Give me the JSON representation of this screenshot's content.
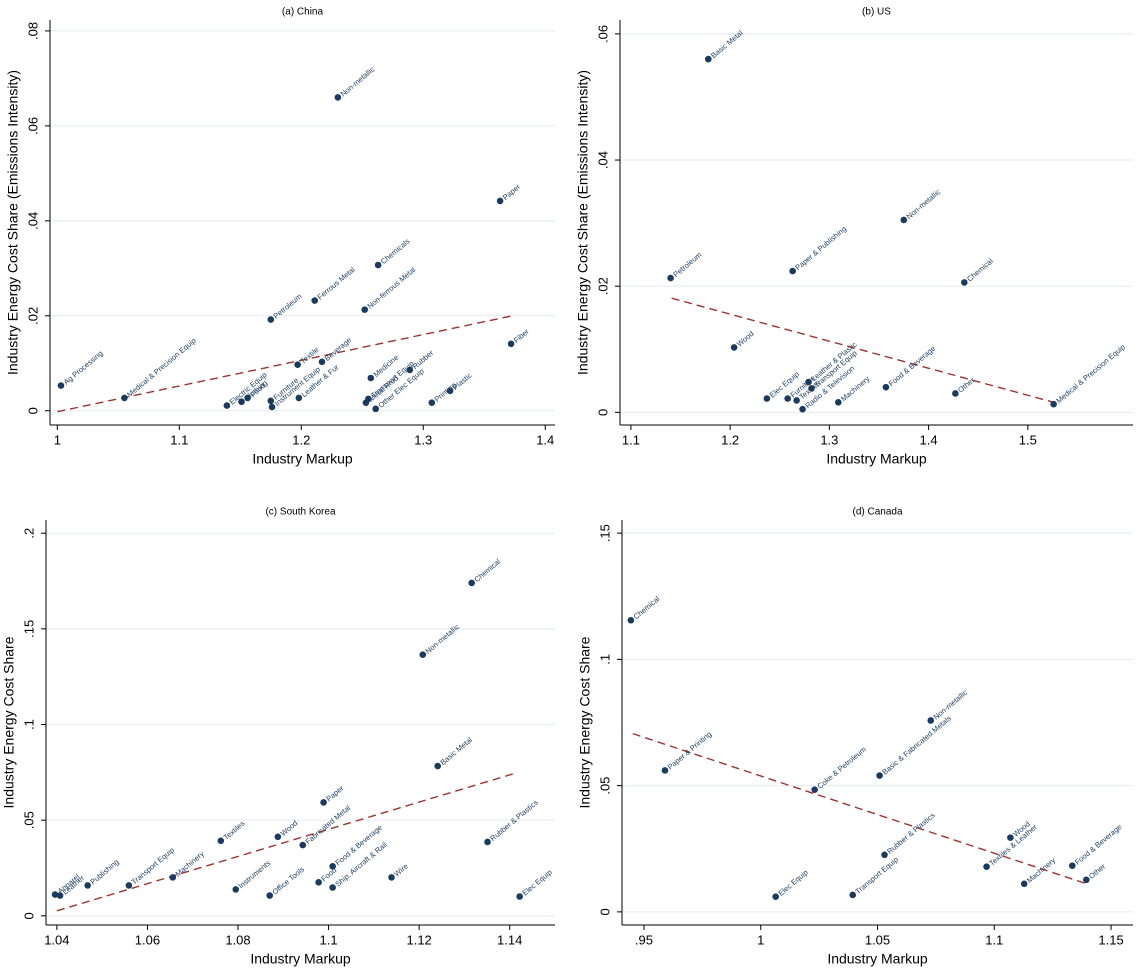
{
  "chart_data": [
    {
      "type": "scatter",
      "title": "(a) China",
      "x_label": "Industry Markup",
      "y_label": "Industry Energy Cost Share (Emissions Intensity)",
      "x": [
        1.003,
        1.055,
        1.23,
        1.363,
        1.263,
        1.211,
        1.175,
        1.252,
        1.372,
        1.197,
        1.217,
        1.257,
        1.289,
        1.139,
        1.151,
        1.156,
        1.175,
        1.176,
        1.198,
        1.253,
        1.255,
        1.261,
        1.307,
        1.322
      ],
      "values": [
        0.0053,
        0.0027,
        0.066,
        0.0442,
        0.0307,
        0.0232,
        0.0192,
        0.0213,
        0.0141,
        0.0097,
        0.0103,
        0.0069,
        0.0086,
        0.0011,
        0.0019,
        0.0027,
        0.0021,
        0.0008,
        0.0027,
        0.0017,
        0.0025,
        0.0004,
        0.0017,
        0.0042
      ],
      "point_labels": [
        "Ag Processing",
        "Medical & Precision Equip",
        "Non-metallic",
        "Paper",
        "Chemicals",
        "Ferrous Metal",
        "Petroleum",
        "Non-ferrous Metal",
        "Fiber",
        "Textile",
        "Beverage",
        "Medicine",
        "Rubber",
        "Electric Equip",
        "Clothing",
        "Food",
        "Furniture",
        "Instrument Equip",
        "Leather & Fur",
        "Metal Prod",
        "Transport Equip",
        "Other Elec Equip",
        "Printing",
        "Plastic"
      ],
      "color": "#1b3a5e",
      "fit_x": [
        1.0,
        1.373
      ],
      "fit_values": [
        -0.0002,
        0.02
      ],
      "fit_color": "#9e3431",
      "xlim": [
        0.994,
        1.408
      ],
      "ylim": [
        -0.003,
        0.0823
      ],
      "xticks": [
        1,
        1.1,
        1.2,
        1.3,
        1.4
      ],
      "yticks": [
        0,
        {
          "value": 0.02,
          "label": ".02"
        },
        {
          "value": 0.04,
          "label": ".04"
        },
        {
          "value": 0.06,
          "label": ".06"
        },
        {
          "value": 0.08,
          "label": ".08"
        }
      ],
      "grid": true
    },
    {
      "type": "scatter",
      "title": "(b) US",
      "x_label": "Industry Markup",
      "y_label": "Industry Energy Cost Share (Emissions Intensity)",
      "x": [
        1.178,
        1.375,
        1.263,
        1.14,
        1.436,
        1.204,
        1.237,
        1.258,
        1.279,
        1.282,
        1.267,
        1.273,
        1.309,
        1.357,
        1.427,
        1.526
      ],
      "values": [
        0.056,
        0.0305,
        0.0224,
        0.0213,
        0.0206,
        0.0103,
        0.0022,
        0.0022,
        0.0048,
        0.0038,
        0.0019,
        0.0005,
        0.0016,
        0.004,
        0.003,
        0.0013
      ],
      "point_labels": [
        "Basic Metal",
        "Non-metallic",
        "Paper & Publishing",
        "Petroleum",
        "Chemical",
        "Wood",
        "Elec Equip",
        "Furniture",
        "Leather & Plastic",
        "Transport Equip",
        "Textiles",
        "Radio & Television",
        "Machinery",
        "Food & Beverage",
        "Other",
        "Medical & Precision Equip"
      ],
      "color": "#1b3a5e",
      "fit_x": [
        1.141,
        1.526
      ],
      "fit_values": [
        0.0181,
        0.0016
      ],
      "fit_color": "#9e3431",
      "xlim": [
        1.089,
        1.606
      ],
      "ylim": [
        -0.002,
        0.0622
      ],
      "xticks": [
        1.1,
        1.2,
        1.3,
        1.4,
        1.5
      ],
      "yticks": [
        0,
        {
          "value": 0.02,
          "label": ".02"
        },
        {
          "value": 0.04,
          "label": ".04"
        },
        {
          "value": 0.06,
          "label": ".06"
        }
      ],
      "grid": true
    },
    {
      "type": "scatter",
      "title": "(c) South Korea",
      "x_label": "Industry Markup",
      "y_label": "Industry Energy Cost Share",
      "x": [
        1.1316,
        1.1208,
        1.1241,
        1.1351,
        1.1422,
        1.0989,
        1.0943,
        1.0888,
        1.0762,
        1.1009,
        1.1009,
        1.0978,
        1.1139,
        1.0795,
        1.087,
        1.0656,
        1.0559,
        1.0468,
        1.0396,
        1.0407
      ],
      "values": [
        0.174,
        0.1365,
        0.0783,
        0.0386,
        0.0101,
        0.0593,
        0.037,
        0.0413,
        0.0392,
        0.0259,
        0.0148,
        0.0175,
        0.0201,
        0.0138,
        0.0106,
        0.0201,
        0.0159,
        0.0159,
        0.0111,
        0.0106
      ],
      "point_labels": [
        "Chemical",
        "Non-metallic",
        "Basic Metal",
        "Rubber & Plastics",
        "Elec Equip",
        "Paper",
        "Fabricated Metal",
        "Wood",
        "Textiles",
        "Food & Beverage",
        "Ship, Aircraft & Rail",
        "Food",
        "Wire",
        "Instruments",
        "Office Tools",
        "Machinery",
        "Transport Equip",
        "Publishing",
        "Apparel",
        "Leather"
      ],
      "color": "#1b3a5e",
      "fit_x": [
        1.04,
        1.1413
      ],
      "fit_values": [
        0.0026,
        0.0746
      ],
      "fit_color": "#9e3431",
      "xlim": [
        1.0376,
        1.15
      ],
      "ylim": [
        -0.0048,
        0.2069
      ],
      "xticks": [
        1.04,
        1.06,
        1.08,
        1.1,
        1.12,
        1.14
      ],
      "yticks": [
        0,
        {
          "value": 0.05,
          "label": ".05"
        },
        {
          "value": 0.1,
          "label": ".1"
        },
        {
          "value": 0.15,
          "label": ".15"
        },
        {
          "value": 0.2,
          "label": ".2"
        }
      ],
      "grid": true
    },
    {
      "type": "scatter",
      "title": "(d) Canada",
      "x_label": "Industry Markup",
      "y_label": "Industry Energy Cost Share",
      "x": [
        0.9444,
        1.0728,
        0.959,
        1.0509,
        1.0231,
        1.053,
        1.1069,
        1.0967,
        1.1334,
        1.1128,
        1.1394,
        1.0064,
        1.0394
      ],
      "values": [
        0.1155,
        0.0758,
        0.056,
        0.054,
        0.0484,
        0.0226,
        0.0294,
        0.0179,
        0.0183,
        0.0111,
        0.0127,
        0.006,
        0.0067
      ],
      "point_labels": [
        "Chemical",
        "Non-metallic",
        "Paper & Printing",
        "Basic & Fabricated Metals",
        "Coke & Petroleum",
        "Rubber & Plastics",
        "Wood",
        "Textiles & Leather",
        "Food & Beverage",
        "Machinery",
        "Other",
        "Elec Equip",
        "Transport Equip"
      ],
      "color": "#1b3a5e",
      "fit_x": [
        0.9452,
        1.1396
      ],
      "fit_values": [
        0.0706,
        0.0111
      ],
      "fit_color": "#9e3431",
      "xlim": [
        0.9406,
        1.1594
      ],
      "ylim": [
        -0.0052,
        0.1552
      ],
      "xticks": [
        {
          "value": 0.95,
          "label": ".95"
        },
        1,
        1.05,
        1.1,
        1.15
      ],
      "yticks": [
        0,
        {
          "value": 0.05,
          "label": ".05"
        },
        {
          "value": 0.1,
          "label": ".1"
        },
        {
          "value": 0.15,
          "label": ".15"
        }
      ],
      "grid": true
    }
  ]
}
